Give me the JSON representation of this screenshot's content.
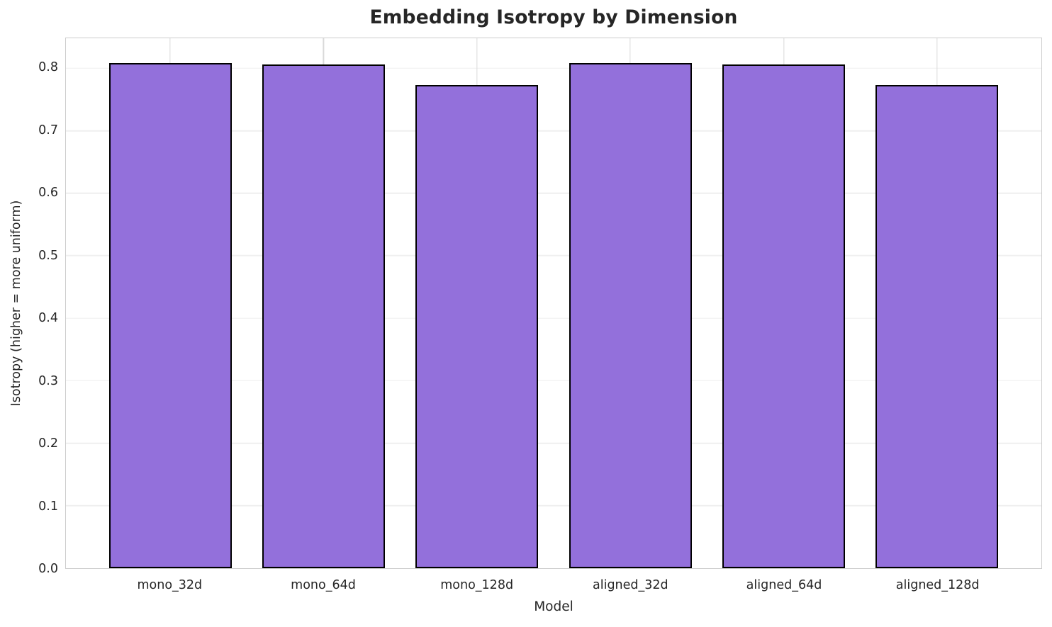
{
  "chart_data": {
    "type": "bar",
    "title": "Embedding Isotropy by Dimension",
    "xlabel": "Model",
    "ylabel": "Isotropy (higher = more uniform)",
    "categories": [
      "mono_32d",
      "mono_64d",
      "mono_128d",
      "aligned_32d",
      "aligned_64d",
      "aligned_128d"
    ],
    "values": [
      0.808,
      0.806,
      0.773,
      0.808,
      0.806,
      0.773
    ],
    "ylim": [
      0,
      0.848
    ],
    "yticks": [
      0.0,
      0.1,
      0.2,
      0.3,
      0.4,
      0.5,
      0.6,
      0.7,
      0.8
    ],
    "ytick_format_decimals": 1,
    "xlim": [
      -0.68,
      5.68
    ],
    "bar_width_units": 0.8,
    "grid": true,
    "legend": null,
    "colors": {
      "bar_fill": "#9370DB",
      "bar_edge": "#000000",
      "grid_horizontal": "#efefef",
      "grid_vertical": "#d9d9d9",
      "spine": "#cdcdcd",
      "text": "#262626",
      "background": "#ffffff"
    }
  }
}
